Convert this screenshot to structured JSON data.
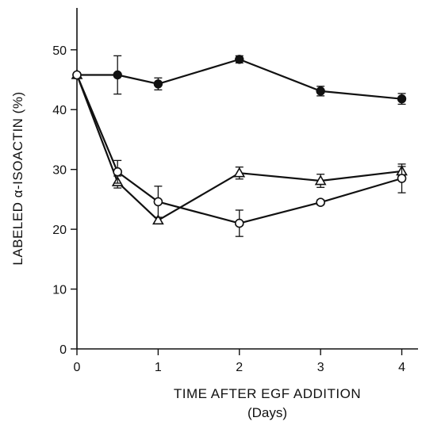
{
  "chart_data": {
    "type": "line",
    "title": "",
    "xlabel": "TIME AFTER EGF ADDITION",
    "xlabel_sub": "(Days)",
    "ylabel": "LABELED α-ISOACTIN (%)",
    "xlim": [
      0,
      4.2
    ],
    "ylim": [
      0,
      57
    ],
    "x_ticks": [
      0,
      1,
      2,
      3,
      4
    ],
    "y_ticks": [
      0,
      10,
      20,
      30,
      40,
      50
    ],
    "grid": false,
    "legend": "none",
    "series": [
      {
        "marker": "filled-circle",
        "points": [
          {
            "x": 0,
            "y": 45.8,
            "err": 0
          },
          {
            "x": 0.5,
            "y": 45.8,
            "err": 3.2
          },
          {
            "x": 1,
            "y": 44.3,
            "err": 1.0
          },
          {
            "x": 2,
            "y": 48.4,
            "err": 0.6
          },
          {
            "x": 3,
            "y": 43.1,
            "err": 0.8
          },
          {
            "x": 4,
            "y": 41.8,
            "err": 0.9
          }
        ]
      },
      {
        "marker": "open-triangle",
        "points": [
          {
            "x": 0,
            "y": 45.8,
            "err": 0
          },
          {
            "x": 0.5,
            "y": 27.9,
            "err": 1.0
          },
          {
            "x": 1,
            "y": 21.5,
            "err": 0.5
          },
          {
            "x": 2,
            "y": 29.4,
            "err": 1.0
          },
          {
            "x": 3,
            "y": 28.1,
            "err": 1.1
          },
          {
            "x": 4,
            "y": 29.7,
            "err": 0.8
          }
        ]
      },
      {
        "marker": "open-circle",
        "points": [
          {
            "x": 0,
            "y": 45.8,
            "err": 0
          },
          {
            "x": 0.5,
            "y": 29.6,
            "err": 1.9
          },
          {
            "x": 1,
            "y": 24.6,
            "err": 2.6
          },
          {
            "x": 2,
            "y": 21.0,
            "err": 2.2
          },
          {
            "x": 3,
            "y": 24.5,
            "err": 0.4
          },
          {
            "x": 4,
            "y": 28.5,
            "err": 2.4
          }
        ]
      }
    ]
  }
}
